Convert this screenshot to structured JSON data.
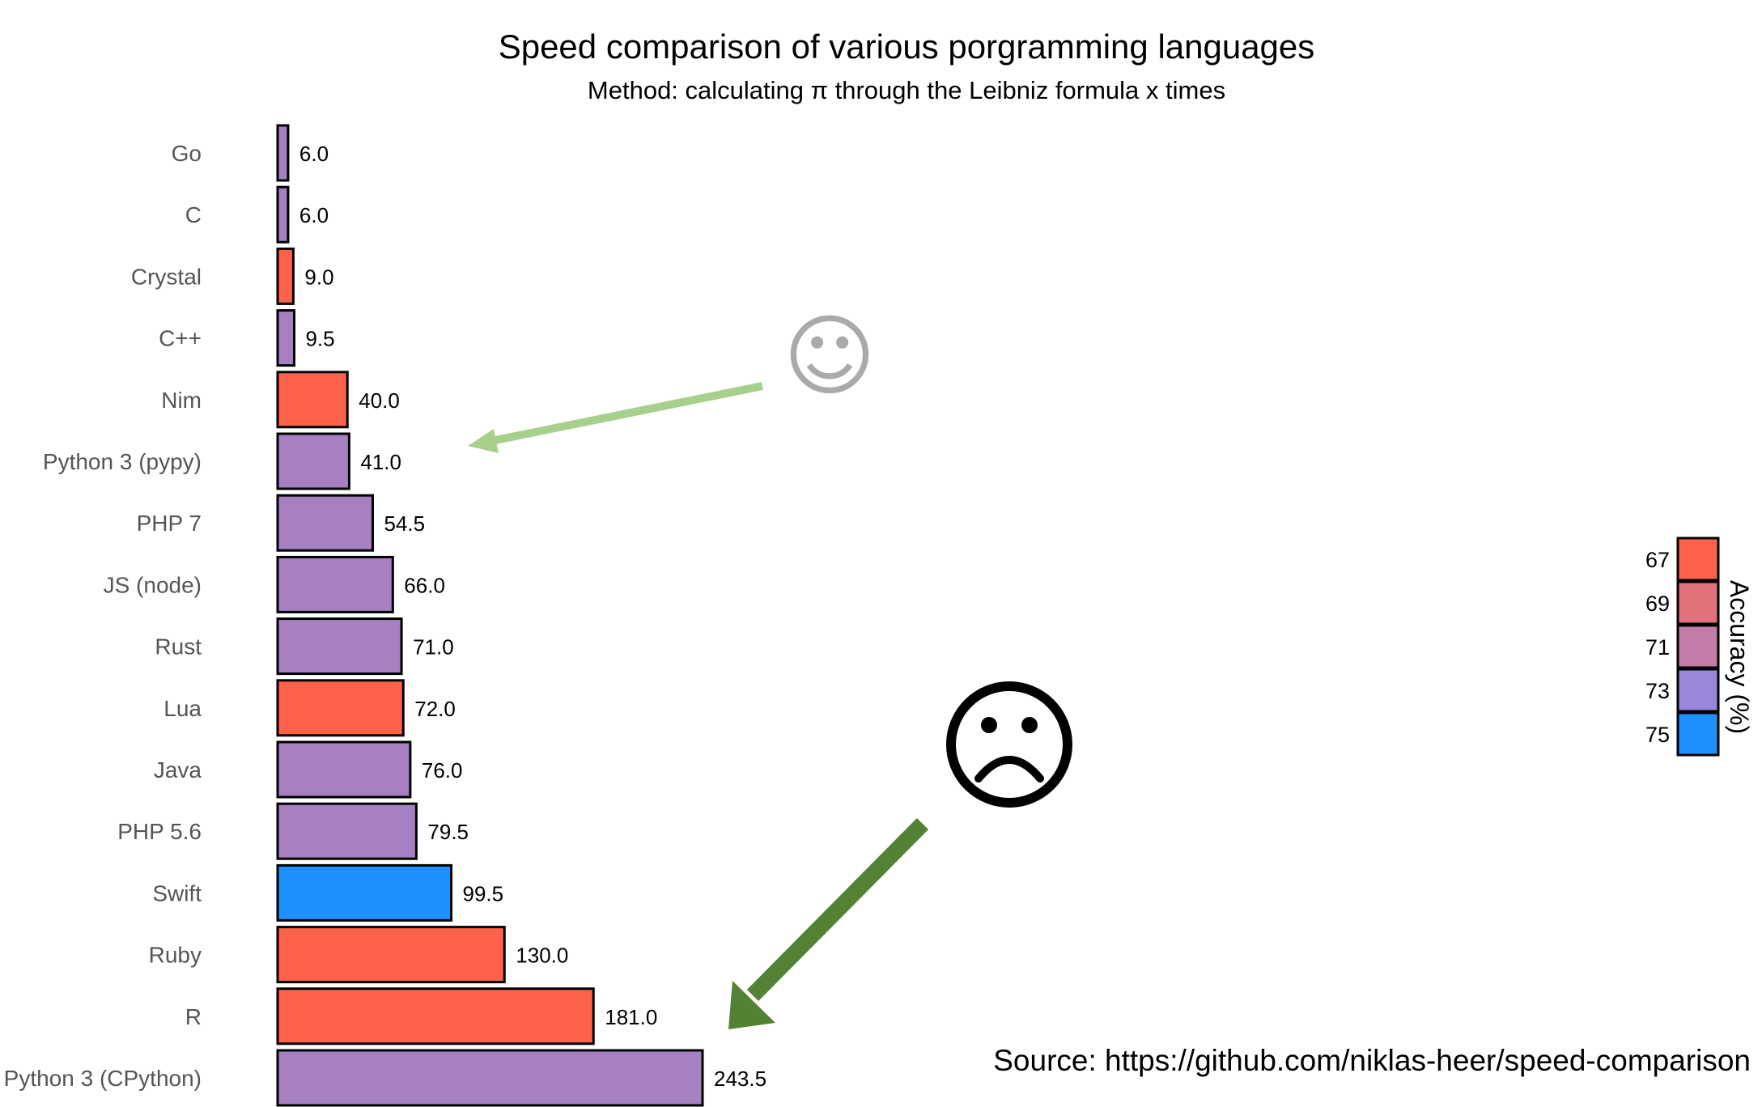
{
  "chart_data": {
    "type": "bar",
    "orientation": "horizontal",
    "title": "Speed comparison of various porgramming languages",
    "subtitle": "Method: calculating π through the Leibniz formula x times",
    "categories": [
      "Go",
      "C",
      "Crystal",
      "C++",
      "Nim",
      "Python 3 (pypy)",
      "PHP 7",
      "JS (node)",
      "Rust",
      "Lua",
      "Java",
      "PHP 5.6",
      "Swift",
      "Ruby",
      "R",
      "Python 3 (CPython)"
    ],
    "values": [
      6.0,
      6.0,
      9.0,
      9.5,
      40.0,
      41.0,
      54.5,
      66.0,
      71.0,
      72.0,
      76.0,
      79.5,
      99.5,
      130.0,
      181.0,
      243.5
    ],
    "value_labels": [
      "6.0",
      "6.0",
      "9.0",
      "9.5",
      "40.0",
      "41.0",
      "54.5",
      "66.0",
      "71.0",
      "72.0",
      "76.0",
      "79.5",
      "99.5",
      "130.0",
      "181.0",
      "243.5"
    ],
    "bar_colors": [
      "#a680c0",
      "#a680c0",
      "#ff624a",
      "#a680c0",
      "#ff624a",
      "#a680c0",
      "#a680c0",
      "#a680c0",
      "#a680c0",
      "#ff624a",
      "#a680c0",
      "#a680c0",
      "#1e90ff",
      "#ff624a",
      "#ff624a",
      "#a680c0"
    ],
    "xlim": [
      0,
      243.5
    ],
    "grid": false,
    "legend": {
      "title": "Accuracy (%)",
      "placement": "right",
      "ticks": [
        "67",
        "69",
        "71",
        "73",
        "75"
      ],
      "colors": [
        "#ff624a",
        "#e0707a",
        "#c17ca8",
        "#9a86d8",
        "#1e90ff"
      ]
    },
    "annotations": {
      "happy_face": "☺",
      "sad_face": "☹",
      "happy_arrow_color": "#a8d08d",
      "sad_arrow_color": "#548235"
    },
    "source": "Source: https://github.com/niklas-heer/speed-comparison"
  }
}
